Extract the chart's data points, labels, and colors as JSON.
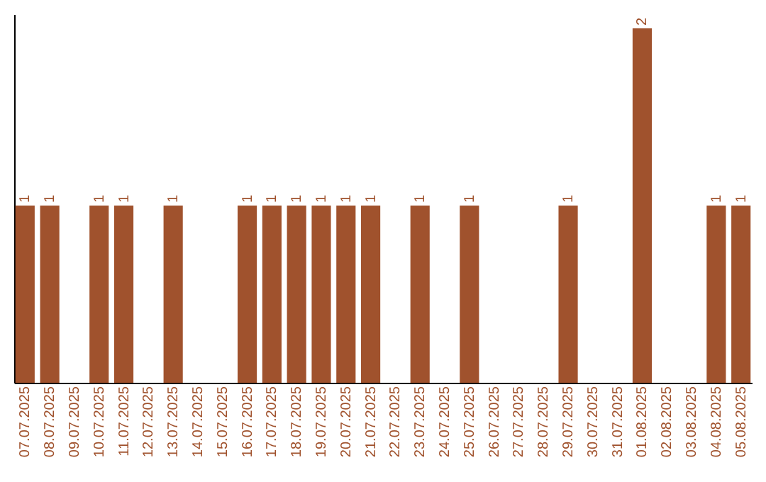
{
  "chart_data": {
    "type": "bar",
    "categories": [
      "07.07.2025",
      "08.07.2025",
      "09.07.2025",
      "10.07.2025",
      "11.07.2025",
      "12.07.2025",
      "13.07.2025",
      "14.07.2025",
      "15.07.2025",
      "16.07.2025",
      "17.07.2025",
      "18.07.2025",
      "19.07.2025",
      "20.07.2025",
      "21.07.2025",
      "22.07.2025",
      "23.07.2025",
      "24.07.2025",
      "25.07.2025",
      "26.07.2025",
      "27.07.2025",
      "28.07.2025",
      "29.07.2025",
      "30.07.2025",
      "31.07.2025",
      "01.08.2025",
      "02.08.2025",
      "03.08.2025",
      "04.08.2025",
      "05.08.2025"
    ],
    "values": [
      1,
      1,
      0,
      1,
      1,
      0,
      1,
      0,
      0,
      1,
      1,
      1,
      1,
      1,
      1,
      0,
      1,
      0,
      1,
      0,
      0,
      0,
      1,
      0,
      0,
      2,
      0,
      0,
      1,
      1
    ],
    "value_labels": [
      "1",
      "1",
      null,
      "1",
      "1",
      null,
      "1",
      null,
      null,
      "1",
      "1",
      "1",
      "1",
      "1",
      "1",
      null,
      "1",
      null,
      "1",
      null,
      null,
      null,
      "1",
      null,
      null,
      "2",
      null,
      null,
      "1",
      "1"
    ],
    "color": "#a0522d",
    "ylim": [
      0,
      2.08
    ],
    "tick_labels": "x",
    "grid": false
  }
}
